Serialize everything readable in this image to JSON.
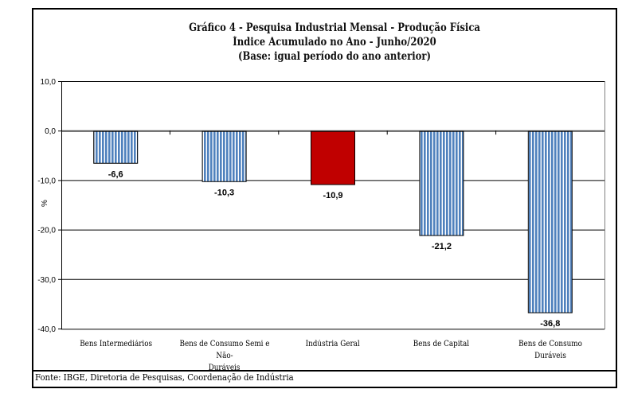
{
  "chart_data": {
    "type": "bar",
    "title": [
      "Gráfico 4 - Pesquisa Industrial Mensal - Produção Física",
      "Índice Acumulado no Ano - Junho/2020",
      "(Base: igual período do ano anterior)"
    ],
    "xlabel": "",
    "ylabel": "%",
    "ylim": [
      -40,
      10
    ],
    "yticks": [
      10,
      0,
      -10,
      -20,
      -30,
      -40
    ],
    "ytick_labels": [
      "10,0",
      "0,0",
      "-10,0",
      "-20,0",
      "-30,0",
      "-40,0"
    ],
    "grid": true,
    "categories": [
      "Bens Intermediários",
      "Bens de Consumo Semi e Não-Duráveis",
      "Indústria Geral",
      "Bens de Capital",
      "Bens de Consumo Duráveis"
    ],
    "category_lines": [
      [
        "Bens Intermediários"
      ],
      [
        "Bens de Consumo Semi e Não-",
        "Duráveis"
      ],
      [
        "Indústria Geral"
      ],
      [
        "Bens de Capital"
      ],
      [
        "Bens de Consumo Duráveis"
      ]
    ],
    "values": [
      -6.6,
      -10.3,
      -10.9,
      -21.2,
      -36.8
    ],
    "data_labels": [
      "-6,6",
      "-10,3",
      "-10,9",
      "-21,2",
      "-36,8"
    ],
    "highlight_index": 2,
    "colors": {
      "bar": "#4f81bd",
      "stripe": "#ffffff",
      "highlight": "#c00000",
      "grid": "#000000",
      "zero_line": "#555555"
    },
    "source": "Fonte: IBGE, Diretoria de Pesquisas, Coordenação de Indústria"
  }
}
